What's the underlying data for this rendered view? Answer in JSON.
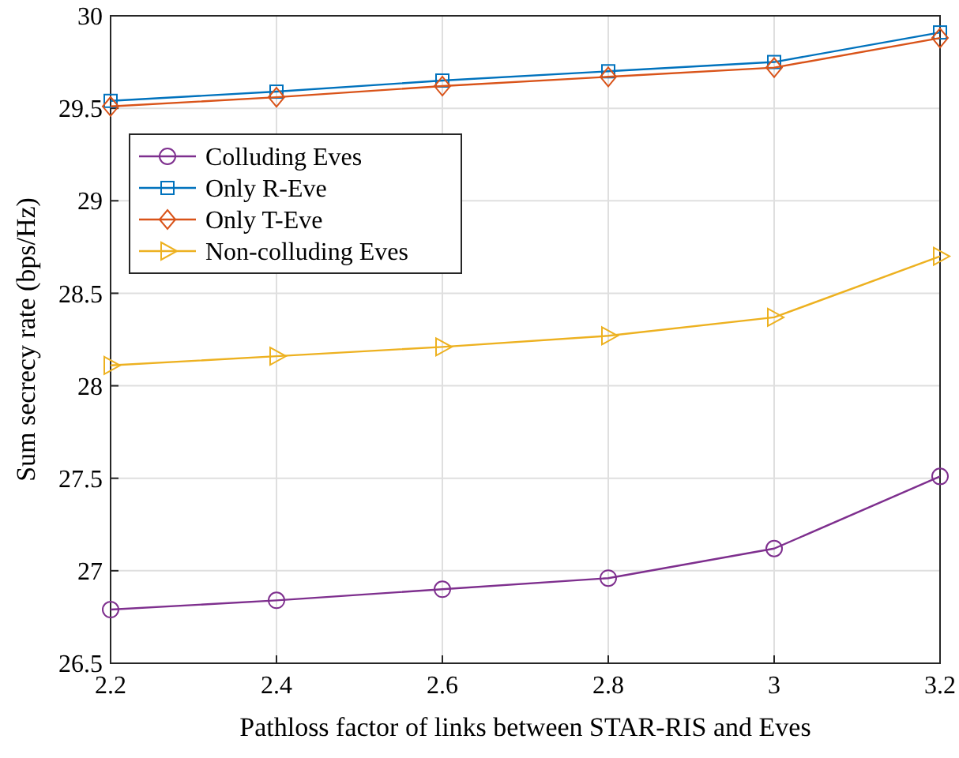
{
  "chart_data": {
    "type": "line",
    "xlabel": "Pathloss factor of links between STAR-RIS and Eves",
    "ylabel": "Sum secrecy rate (bps/Hz)",
    "x": [
      2.2,
      2.4,
      2.6,
      2.8,
      3,
      3.2
    ],
    "xlim": [
      2.2,
      3.2
    ],
    "xticks": [
      2.2,
      2.4,
      2.6,
      2.8,
      3,
      3.2
    ],
    "ylim": [
      26.5,
      30
    ],
    "yticks": [
      26.5,
      27,
      27.5,
      28,
      28.5,
      29,
      29.5,
      30
    ],
    "grid": true,
    "legend": "top left",
    "line_style": "solid",
    "series": [
      {
        "name": "Colluding Eves",
        "color": "#7e2f8e",
        "marker": "circle",
        "values": [
          26.79,
          26.84,
          26.9,
          26.96,
          27.12,
          27.51
        ]
      },
      {
        "name": "Only R-Eve",
        "color": "#0072bd",
        "marker": "square",
        "values": [
          29.54,
          29.59,
          29.65,
          29.7,
          29.75,
          29.91
        ]
      },
      {
        "name": "Only T-Eve",
        "color": "#d95319",
        "marker": "diamond",
        "values": [
          29.51,
          29.56,
          29.62,
          29.67,
          29.72,
          29.88
        ]
      },
      {
        "name": "Non-colluding Eves",
        "color": "#edb120",
        "marker": "triangle",
        "values": [
          28.11,
          28.16,
          28.21,
          28.27,
          28.37,
          28.7
        ]
      }
    ]
  }
}
